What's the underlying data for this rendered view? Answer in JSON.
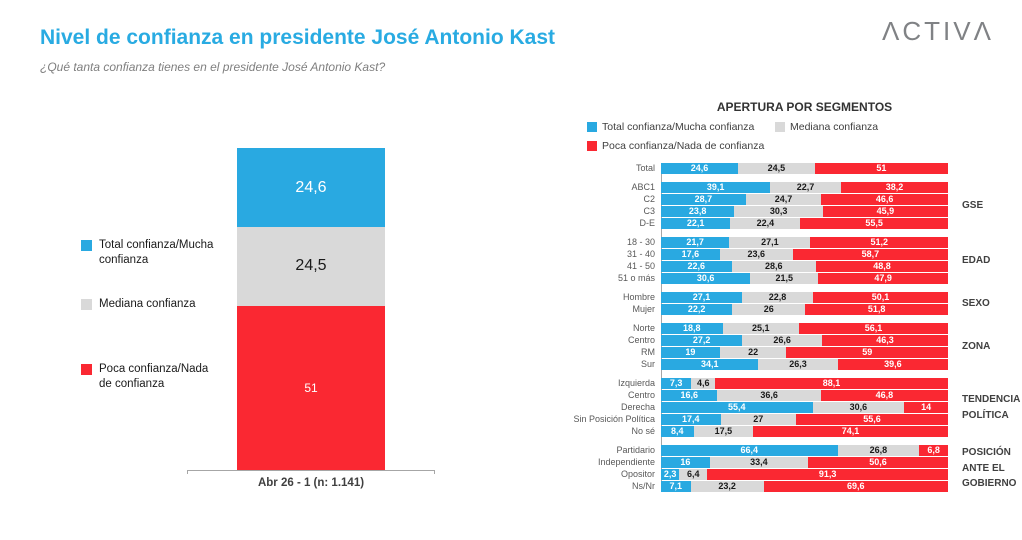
{
  "header": {
    "title": "Nivel de confianza en presidente José Antonio Kast",
    "subtitle": "¿Qué tanta confianza tienes en el presidente José Antonio Kast?",
    "logo": "ΛCTIVΛ"
  },
  "colors": {
    "blue": "#29A9E1",
    "gray": "#D9D9D9",
    "red": "#FA2832",
    "title": "#29ABE2",
    "logo": "#808285",
    "axis": "#A6A6A6",
    "text_dark": "#1A1A1A",
    "label_gray": "#595959",
    "group_label": "#404040",
    "subtitle": "#7F7F7F"
  },
  "chart_data": [
    {
      "type": "bar",
      "orientation": "vertical",
      "stacked": true,
      "title": "",
      "x_tick_label": "Abr 26 - 1 (n: 1.141)",
      "legend_position": "left",
      "color_keys": [
        "blue",
        "gray",
        "red"
      ],
      "series": [
        {
          "name": "Total confianza/Mucha confianza",
          "color_key": "blue",
          "value": 24.6,
          "label": "24,6"
        },
        {
          "name": "Mediana confianza",
          "color_key": "gray",
          "value": 24.5,
          "label": "24,5"
        },
        {
          "name": "Poca confianza/Nada de confianza",
          "color_key": "red",
          "value": 51,
          "label": "51"
        }
      ]
    },
    {
      "type": "bar",
      "orientation": "horizontal",
      "stacked": true,
      "title": "APERTURA POR SEGMENTOS",
      "xlim": [
        0,
        100
      ],
      "grid": false,
      "legend_position": "top",
      "color_keys": [
        "blue",
        "gray",
        "red"
      ],
      "series_names": [
        "Total confianza/Mucha confianza",
        "Mediana confianza",
        "Poca confianza/Nada de confianza"
      ],
      "groups": [
        {
          "label": "",
          "rows": [
            {
              "label": "Total",
              "values": [
                24.6,
                24.5,
                51
              ],
              "labels": [
                "24,6",
                "24,5",
                "51"
              ]
            }
          ]
        },
        {
          "label": "GSE",
          "rows": [
            {
              "label": "ABC1",
              "values": [
                39.1,
                22.7,
                38.2
              ],
              "labels": [
                "39,1",
                "22,7",
                "38,2"
              ]
            },
            {
              "label": "C2",
              "values": [
                28.7,
                24.7,
                46.6
              ],
              "labels": [
                "28,7",
                "24,7",
                "46,6"
              ]
            },
            {
              "label": "C3",
              "values": [
                23.8,
                30.3,
                45.9
              ],
              "labels": [
                "23,8",
                "30,3",
                "45,9"
              ]
            },
            {
              "label": "D-E",
              "values": [
                22.1,
                22.4,
                55.5
              ],
              "labels": [
                "22,1",
                "22,4",
                "55,5"
              ]
            }
          ]
        },
        {
          "label": "EDAD",
          "rows": [
            {
              "label": "18 - 30",
              "values": [
                21.7,
                27.1,
                51.2
              ],
              "labels": [
                "21,7",
                "27,1",
                "51,2"
              ]
            },
            {
              "label": "31 - 40",
              "values": [
                17.6,
                23.6,
                58.7
              ],
              "labels": [
                "17,6",
                "23,6",
                "58,7"
              ]
            },
            {
              "label": "41 - 50",
              "values": [
                22.6,
                28.6,
                48.8
              ],
              "labels": [
                "22,6",
                "28,6",
                "48,8"
              ]
            },
            {
              "label": "51 o más",
              "values": [
                30.6,
                21.5,
                47.9
              ],
              "labels": [
                "30,6",
                "21,5",
                "47,9"
              ]
            }
          ]
        },
        {
          "label": "SEXO",
          "rows": [
            {
              "label": "Hombre",
              "values": [
                27.1,
                22.8,
                50.1
              ],
              "labels": [
                "27,1",
                "22,8",
                "50,1"
              ]
            },
            {
              "label": "Mujer",
              "values": [
                22.2,
                26,
                51.8
              ],
              "labels": [
                "22,2",
                "26",
                "51,8"
              ]
            }
          ]
        },
        {
          "label": "ZONA",
          "rows": [
            {
              "label": "Norte",
              "values": [
                18.8,
                25.1,
                56.1
              ],
              "labels": [
                "18,8",
                "25,1",
                "56,1"
              ]
            },
            {
              "label": "Centro",
              "values": [
                27.2,
                26.6,
                46.3
              ],
              "labels": [
                "27,2",
                "26,6",
                "46,3"
              ]
            },
            {
              "label": "RM",
              "values": [
                19,
                22,
                59
              ],
              "labels": [
                "19",
                "22",
                "59"
              ]
            },
            {
              "label": "Sur",
              "values": [
                34.1,
                26.3,
                39.6
              ],
              "labels": [
                "34,1",
                "26,3",
                "39,6"
              ]
            }
          ]
        },
        {
          "label": "TENDENCIA POLÍTICA",
          "rows": [
            {
              "label": "Izquierda",
              "values": [
                7.3,
                4.6,
                88.1
              ],
              "labels": [
                "7,3",
                "4,6",
                "88,1"
              ]
            },
            {
              "label": "Centro",
              "values": [
                16.6,
                36.6,
                46.8
              ],
              "labels": [
                "16,6",
                "36,6",
                "46,8"
              ]
            },
            {
              "label": "Derecha",
              "values": [
                55.4,
                30.6,
                14
              ],
              "labels": [
                "55,4",
                "30,6",
                "14"
              ]
            },
            {
              "label": "Sin Posición Política",
              "values": [
                17.4,
                27,
                55.6
              ],
              "labels": [
                "17,4",
                "27",
                "55,6"
              ]
            },
            {
              "label": "No sé",
              "values": [
                8.4,
                17.5,
                74.1
              ],
              "labels": [
                "8,4",
                "17,5",
                "74,1"
              ]
            }
          ]
        },
        {
          "label": "POSICIÓN ANTE EL GOBIERNO",
          "rows": [
            {
              "label": "Partidario",
              "values": [
                66.4,
                26.8,
                6.8
              ],
              "labels": [
                "66,4",
                "26,8",
                "6,8"
              ]
            },
            {
              "label": "Independiente",
              "values": [
                16,
                33.4,
                50.6
              ],
              "labels": [
                "16",
                "33,4",
                "50,6"
              ]
            },
            {
              "label": "Opositor",
              "values": [
                2.3,
                6.4,
                91.3
              ],
              "labels": [
                "2,3",
                "6,4",
                "91,3"
              ]
            },
            {
              "label": "Ns/Nr",
              "values": [
                7.1,
                23.2,
                69.6
              ],
              "labels": [
                "7,1",
                "23,2",
                "69,6"
              ]
            }
          ]
        }
      ]
    }
  ]
}
